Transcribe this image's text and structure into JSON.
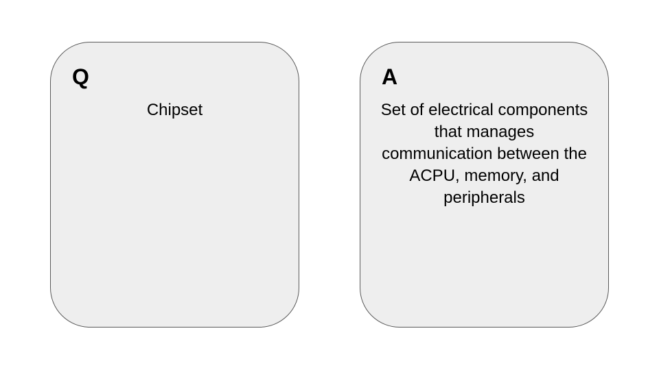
{
  "question_card": {
    "letter": "Q",
    "text": "Chipset"
  },
  "answer_card": {
    "letter": "A",
    "text": "Set of electrical components that manages communication between the ACPU, memory, and peripherals"
  }
}
